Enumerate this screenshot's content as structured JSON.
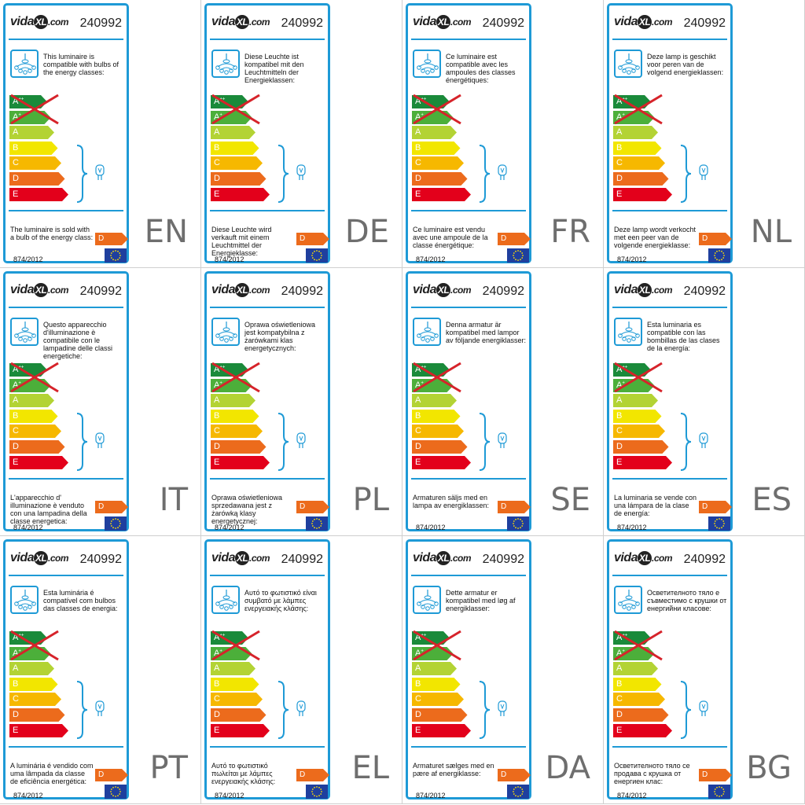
{
  "brand": {
    "name_a": "vida",
    "name_b": "XL",
    "name_c": ".com"
  },
  "product_code": "240992",
  "regulation": "874/2012",
  "energy_classes": [
    {
      "label": "A",
      "sup": "++",
      "color": "#1a8a3a"
    },
    {
      "label": "A",
      "sup": "+",
      "color": "#4caf3a"
    },
    {
      "label": "A",
      "sup": "",
      "color": "#b3d334"
    },
    {
      "label": "B",
      "sup": "",
      "color": "#f2e600"
    },
    {
      "label": "C",
      "sup": "",
      "color": "#f6b800"
    },
    {
      "label": "D",
      "sup": "",
      "color": "#ec6b1c"
    },
    {
      "label": "E",
      "sup": "",
      "color": "#e3001b"
    }
  ],
  "sold_class": "D",
  "labels": [
    {
      "lang": "EN",
      "compat": "This luminaire is compatible with bulbs of the energy classes:",
      "sold": "The luminaire is sold with a bulb of the energy class:"
    },
    {
      "lang": "DE",
      "compat": "Diese Leuchte ist kompatibel mit den Leuchtmitteln der Energieklassen:",
      "sold": "Diese Leuchte wird verkauft mit einem Leuchtmittel der Energieklasse:"
    },
    {
      "lang": "FR",
      "compat": "Ce luminaire est compatible avec les ampoules des classes énergétiques:",
      "sold": "Ce luminaire est vendu avec une ampoule de la classe énergétique:"
    },
    {
      "lang": "NL",
      "compat": "Deze lamp is geschikt voor peren van de volgend energieklassen:",
      "sold": "Deze lamp wordt verkocht met een peer van de volgende energieklasse:"
    },
    {
      "lang": "IT",
      "compat": "Questo apparecchio d'illuminazione è compatibile con le lampadine delle classi energetiche:",
      "sold": "L'apparecchio d'  illuminazione è venduto con una lampadina della classe energetica:"
    },
    {
      "lang": "PL",
      "compat": "Oprawa oświetleniowa jest kompatybilna z żarówkami klas energetycznych:",
      "sold": "Oprawa oświetleniowa sprzedawana jest z żarówką klasy energetycznej:"
    },
    {
      "lang": "SE",
      "compat": "Denna armatur är kompatibel med lampor av följande energiklasser:",
      "sold": "Armaturen säljs med en lampa av energiklassen:"
    },
    {
      "lang": "ES",
      "compat": "Esta luminaria es compatible con las bombillas de las clases de la energía:",
      "sold": "La luminaria se vende con una lámpara de la clase de energía:"
    },
    {
      "lang": "PT",
      "compat": "Esta luminária é compatível com bulbos das classes de energia:",
      "sold": "A luminária é vendido com uma lâmpada da classe de eficiência energética:"
    },
    {
      "lang": "EL",
      "compat": "Αυτό το φωτιστικό είναι συμβατό με λάμπες ενεργειακής κλάσης:",
      "sold": "Αυτό το φωτιστικό πωλείται με λάμπες ενεργειακής κλάσης:"
    },
    {
      "lang": "DA",
      "compat": "Dette armatur er kompatibel med løg af energiklasser:",
      "sold": "Armaturet sælges med en pære af energiklasse:"
    },
    {
      "lang": "BG",
      "compat": "Осветителното тяло е съвместимо с крушки от енергийни класове:",
      "sold": "Осветителното тяло се продава с крушка от енергиен клас:"
    }
  ]
}
